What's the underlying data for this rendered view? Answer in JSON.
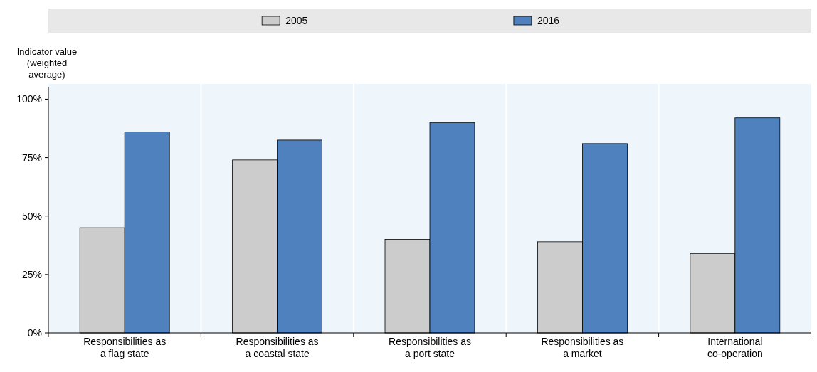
{
  "chart_data": {
    "type": "bar",
    "ylabel": "Indicator value (weighted average)",
    "categories": [
      "Responsibilities as a flag state",
      "Responsibilities as a coastal state",
      "Responsibilities as a port state",
      "Responsibilities as a market",
      "International co-operation"
    ],
    "series": [
      {
        "name": "2005",
        "color": "#cccccc",
        "values": [
          45,
          74,
          40,
          39,
          34
        ]
      },
      {
        "name": "2016",
        "color": "#4e81bd",
        "values": [
          86,
          82.5,
          90,
          81,
          92
        ]
      }
    ],
    "ylim": [
      0,
      105
    ],
    "yticks": [
      {
        "value": 0,
        "label": "0%"
      },
      {
        "value": 25,
        "label": "25%"
      },
      {
        "value": 50,
        "label": "50%"
      },
      {
        "value": 75,
        "label": "75%"
      },
      {
        "value": 100,
        "label": "100%"
      }
    ],
    "grid": false,
    "legend": "top"
  }
}
